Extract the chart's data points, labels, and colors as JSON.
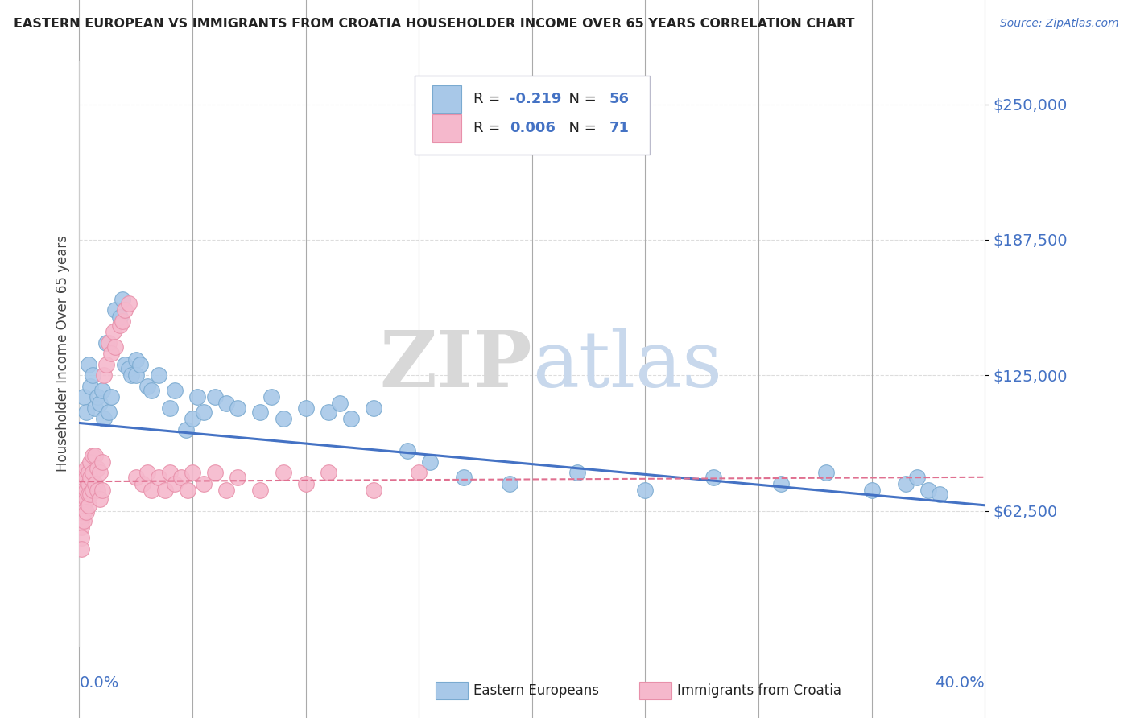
{
  "title": "EASTERN EUROPEAN VS IMMIGRANTS FROM CROATIA HOUSEHOLDER INCOME OVER 65 YEARS CORRELATION CHART",
  "source": "Source: ZipAtlas.com",
  "ylabel": "Householder Income Over 65 years",
  "xlim": [
    0.0,
    0.4
  ],
  "ylim": [
    0,
    270000
  ],
  "yticks": [
    62500,
    125000,
    187500,
    250000
  ],
  "ytick_labels": [
    "$62,500",
    "$125,000",
    "$187,500",
    "$250,000"
  ],
  "blue_color": "#a8c8e8",
  "blue_edge_color": "#7aaad0",
  "pink_color": "#f5b8cc",
  "pink_edge_color": "#e890aa",
  "blue_line_color": "#4472c4",
  "pink_line_color": "#e07090",
  "label_color": "#4472c4",
  "title_color": "#222222",
  "grid_color": "#dddddd",
  "spine_color": "#cccccc",
  "blue_x": [
    0.002,
    0.003,
    0.004,
    0.005,
    0.006,
    0.007,
    0.008,
    0.009,
    0.01,
    0.011,
    0.012,
    0.013,
    0.014,
    0.016,
    0.018,
    0.019,
    0.02,
    0.022,
    0.023,
    0.025,
    0.025,
    0.027,
    0.03,
    0.032,
    0.035,
    0.04,
    0.042,
    0.047,
    0.05,
    0.052,
    0.055,
    0.06,
    0.065,
    0.07,
    0.08,
    0.085,
    0.09,
    0.1,
    0.11,
    0.115,
    0.12,
    0.13,
    0.145,
    0.155,
    0.17,
    0.19,
    0.22,
    0.25,
    0.28,
    0.31,
    0.33,
    0.35,
    0.365,
    0.37,
    0.375,
    0.38
  ],
  "blue_y": [
    115000,
    108000,
    130000,
    120000,
    125000,
    110000,
    115000,
    112000,
    118000,
    105000,
    140000,
    108000,
    115000,
    155000,
    152000,
    160000,
    130000,
    128000,
    125000,
    132000,
    125000,
    130000,
    120000,
    118000,
    125000,
    110000,
    118000,
    100000,
    105000,
    115000,
    108000,
    115000,
    112000,
    110000,
    108000,
    115000,
    105000,
    110000,
    108000,
    112000,
    105000,
    110000,
    90000,
    85000,
    78000,
    75000,
    80000,
    72000,
    78000,
    75000,
    80000,
    72000,
    75000,
    78000,
    72000,
    70000
  ],
  "pink_x": [
    0.001,
    0.001,
    0.001,
    0.001,
    0.001,
    0.001,
    0.001,
    0.001,
    0.001,
    0.001,
    0.002,
    0.002,
    0.002,
    0.002,
    0.002,
    0.002,
    0.002,
    0.003,
    0.003,
    0.003,
    0.003,
    0.003,
    0.004,
    0.004,
    0.004,
    0.004,
    0.005,
    0.005,
    0.005,
    0.006,
    0.006,
    0.006,
    0.007,
    0.007,
    0.008,
    0.008,
    0.009,
    0.009,
    0.01,
    0.01,
    0.011,
    0.012,
    0.013,
    0.014,
    0.015,
    0.016,
    0.018,
    0.019,
    0.02,
    0.022,
    0.025,
    0.028,
    0.03,
    0.032,
    0.035,
    0.038,
    0.04,
    0.042,
    0.045,
    0.048,
    0.05,
    0.055,
    0.06,
    0.065,
    0.07,
    0.08,
    0.09,
    0.1,
    0.11,
    0.13,
    0.15
  ],
  "pink_y": [
    75000,
    70000,
    68000,
    65000,
    62000,
    60000,
    58000,
    55000,
    50000,
    45000,
    80000,
    75000,
    72000,
    68000,
    65000,
    62000,
    58000,
    82000,
    78000,
    72000,
    68000,
    62000,
    80000,
    75000,
    70000,
    65000,
    85000,
    78000,
    70000,
    88000,
    80000,
    72000,
    88000,
    75000,
    82000,
    72000,
    80000,
    68000,
    85000,
    72000,
    125000,
    130000,
    140000,
    135000,
    145000,
    138000,
    148000,
    150000,
    155000,
    158000,
    78000,
    75000,
    80000,
    72000,
    78000,
    72000,
    80000,
    75000,
    78000,
    72000,
    80000,
    75000,
    80000,
    72000,
    78000,
    72000,
    80000,
    75000,
    80000,
    72000,
    80000
  ],
  "blue_trend_x0": 0.0,
  "blue_trend_y0": 103000,
  "blue_trend_x1": 0.4,
  "blue_trend_y1": 65000,
  "pink_trend_x0": 0.0,
  "pink_trend_y0": 76000,
  "pink_trend_x1": 0.4,
  "pink_trend_y1": 78000,
  "watermark_zip": "ZIP",
  "watermark_atlas": "atlas",
  "legend_blue_r": "-0.219",
  "legend_blue_n": "56",
  "legend_pink_r": "0.006",
  "legend_pink_n": "71"
}
